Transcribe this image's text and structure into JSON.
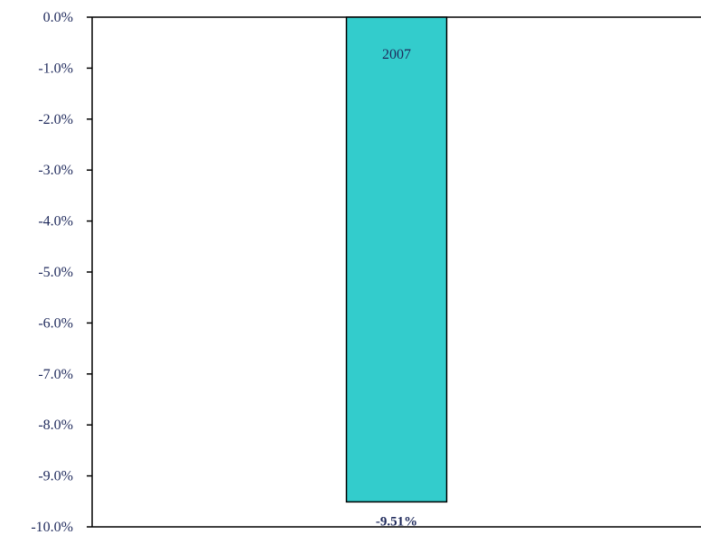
{
  "chart_data": {
    "type": "bar",
    "categories": [
      "2007"
    ],
    "values": [
      -9.51
    ],
    "data_labels": [
      "-9.51%"
    ],
    "title": "",
    "xlabel": "",
    "ylabel": "",
    "ylim": [
      -10,
      0
    ],
    "y_ticks": [
      0,
      -1,
      -2,
      -3,
      -4,
      -5,
      -6,
      -7,
      -8,
      -9,
      -10
    ],
    "y_tick_labels": [
      "0.0%",
      "-1.0%",
      "-2.0%",
      "-3.0%",
      "-4.0%",
      "-5.0%",
      "-6.0%",
      "-7.0%",
      "-8.0%",
      "-9.0%",
      "-10.0%"
    ],
    "grid": false,
    "legend": "none",
    "colors": {
      "bar_fill": "#33CCCC",
      "bar_stroke": "#000000",
      "axis": "#000000",
      "text": "#1F2A5C"
    }
  }
}
